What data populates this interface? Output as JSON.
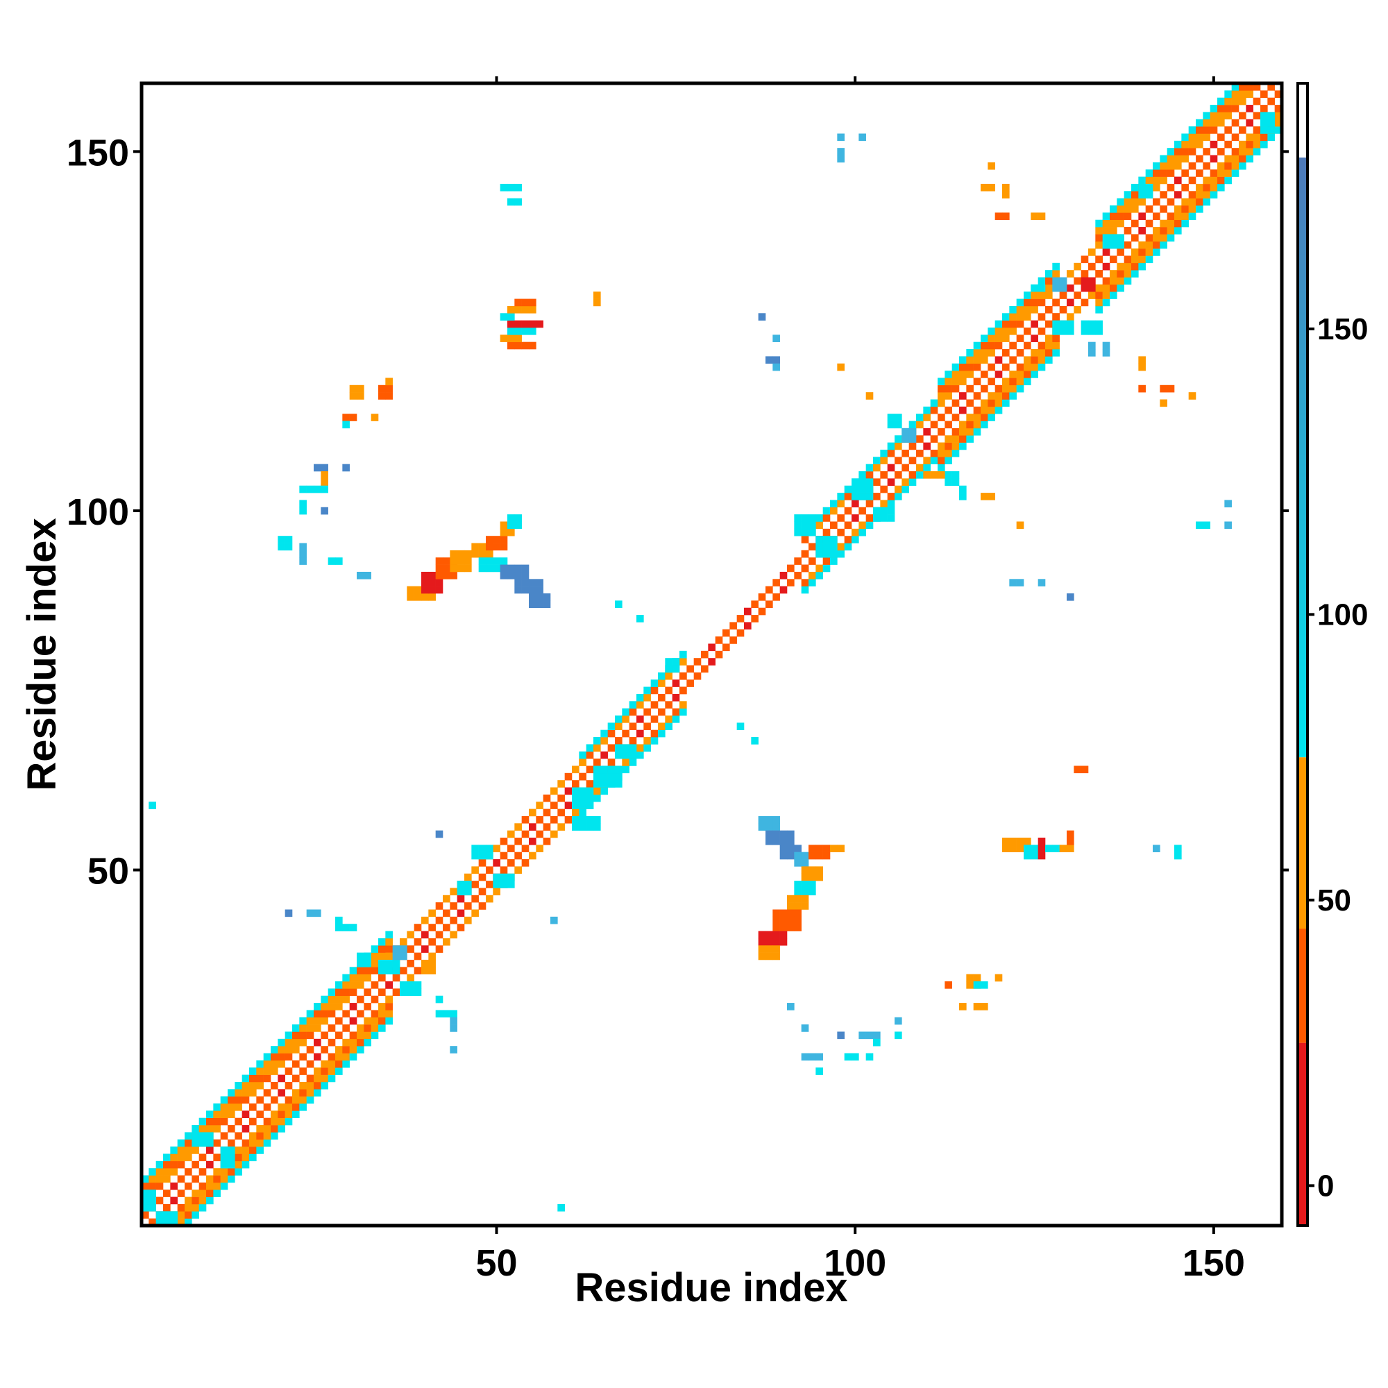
{
  "chart_data": {
    "type": "heatmap",
    "title": "",
    "xlabel": "Residue index",
    "ylabel": "Residue index",
    "xlim": [
      0.5,
      159.5
    ],
    "ylim": [
      0.5,
      159.5
    ],
    "x_ticks": [
      50,
      100,
      150
    ],
    "y_ticks": [
      50,
      100,
      150
    ],
    "colorbar": {
      "ticks": [
        0,
        50,
        100,
        150
      ],
      "range": [
        -7,
        193
      ],
      "bands": [
        {
          "from": -7,
          "to": 25,
          "color": "#e41a1c"
        },
        {
          "from": 25,
          "to": 45,
          "color": "#ff5a00"
        },
        {
          "from": 45,
          "to": 75,
          "color": "#ff9a00"
        },
        {
          "from": 75,
          "to": 180,
          "color": "#00e5ee"
        },
        {
          "from": 180,
          "to": 193,
          "color": "#ffffff"
        }
      ],
      "gradient_top": "#4f79b8",
      "gradient_low": "#00e5ee"
    },
    "colors": {
      "red": "#e41a1c",
      "red_orange": "#ff5a00",
      "orange": "#ff9a00",
      "cyan": "#00e5ee",
      "steel_blue": "#4a86c8",
      "light_blue": "#3fb5e0"
    },
    "diagonal": {
      "segments": [
        {
          "from": 1,
          "to": 35,
          "half_width": 6
        },
        {
          "from": 35,
          "to": 62,
          "half_width": 3
        },
        {
          "from": 62,
          "to": 76,
          "half_width": 4
        },
        {
          "from": 76,
          "to": 93,
          "half_width": 2
        },
        {
          "from": 93,
          "to": 112,
          "half_width": 4
        },
        {
          "from": 112,
          "to": 128,
          "half_width": 6
        },
        {
          "from": 128,
          "to": 134,
          "half_width": 3
        },
        {
          "from": 134,
          "to": 159,
          "half_width": 6
        }
      ]
    },
    "contacts": [
      {
        "x": 38,
        "y": 88,
        "w": 4,
        "h": 2,
        "color": "orange"
      },
      {
        "x": 40,
        "y": 89,
        "w": 3,
        "h": 3,
        "color": "red"
      },
      {
        "x": 42,
        "y": 91,
        "w": 3,
        "h": 3,
        "color": "red_orange"
      },
      {
        "x": 44,
        "y": 92,
        "w": 3,
        "h": 3,
        "color": "orange"
      },
      {
        "x": 47,
        "y": 94,
        "w": 3,
        "h": 2,
        "color": "orange"
      },
      {
        "x": 49,
        "y": 95,
        "w": 3,
        "h": 2,
        "color": "red_orange"
      },
      {
        "x": 51,
        "y": 97,
        "w": 2,
        "h": 2,
        "color": "orange"
      },
      {
        "x": 48,
        "y": 92,
        "w": 4,
        "h": 2,
        "color": "cyan"
      },
      {
        "x": 51,
        "y": 91,
        "w": 4,
        "h": 2,
        "color": "steel_blue"
      },
      {
        "x": 53,
        "y": 89,
        "w": 4,
        "h": 2,
        "color": "steel_blue"
      },
      {
        "x": 55,
        "y": 87,
        "w": 3,
        "h": 2,
        "color": "steel_blue"
      },
      {
        "x": 52,
        "y": 98,
        "w": 2,
        "h": 2,
        "color": "cyan"
      },
      {
        "x": 52,
        "y": 123,
        "w": 4,
        "h": 1,
        "color": "red_orange"
      },
      {
        "x": 51,
        "y": 124,
        "w": 3,
        "h": 1,
        "color": "orange"
      },
      {
        "x": 52,
        "y": 125,
        "w": 4,
        "h": 1,
        "color": "cyan"
      },
      {
        "x": 52,
        "y": 126,
        "w": 5,
        "h": 1,
        "color": "red"
      },
      {
        "x": 51,
        "y": 127,
        "w": 2,
        "h": 1,
        "color": "cyan"
      },
      {
        "x": 52,
        "y": 128,
        "w": 4,
        "h": 1,
        "color": "orange"
      },
      {
        "x": 53,
        "y": 129,
        "w": 3,
        "h": 1,
        "color": "red_orange"
      },
      {
        "x": 64,
        "y": 129,
        "w": 1,
        "h": 2,
        "color": "orange"
      },
      {
        "x": 51,
        "y": 145,
        "w": 3,
        "h": 1,
        "color": "cyan"
      },
      {
        "x": 52,
        "y": 143,
        "w": 2,
        "h": 1,
        "color": "cyan"
      },
      {
        "x": 30,
        "y": 116,
        "w": 2,
        "h": 2,
        "color": "orange"
      },
      {
        "x": 34,
        "y": 116,
        "w": 2,
        "h": 2,
        "color": "red_orange"
      },
      {
        "x": 29,
        "y": 113,
        "w": 2,
        "h": 1,
        "color": "red_orange"
      },
      {
        "x": 33,
        "y": 113,
        "w": 1,
        "h": 1,
        "color": "orange"
      },
      {
        "x": 29,
        "y": 112,
        "w": 1,
        "h": 1,
        "color": "cyan"
      },
      {
        "x": 35,
        "y": 118,
        "w": 1,
        "h": 1,
        "color": "orange"
      },
      {
        "x": 25,
        "y": 106,
        "w": 2,
        "h": 1,
        "color": "steel_blue"
      },
      {
        "x": 26,
        "y": 104,
        "w": 1,
        "h": 2,
        "color": "orange"
      },
      {
        "x": 23,
        "y": 103,
        "w": 4,
        "h": 1,
        "color": "cyan"
      },
      {
        "x": 29,
        "y": 106,
        "w": 1,
        "h": 1,
        "color": "steel_blue"
      },
      {
        "x": 23,
        "y": 100,
        "w": 1,
        "h": 2,
        "color": "cyan"
      },
      {
        "x": 26,
        "y": 100,
        "w": 1,
        "h": 1,
        "color": "steel_blue"
      },
      {
        "x": 20,
        "y": 95,
        "w": 2,
        "h": 2,
        "color": "cyan"
      },
      {
        "x": 23,
        "y": 93,
        "w": 1,
        "h": 3,
        "color": "light_blue"
      },
      {
        "x": 27,
        "y": 93,
        "w": 2,
        "h": 1,
        "color": "cyan"
      },
      {
        "x": 31,
        "y": 91,
        "w": 2,
        "h": 1,
        "color": "light_blue"
      },
      {
        "x": 67,
        "y": 87,
        "w": 1,
        "h": 1,
        "color": "cyan"
      },
      {
        "x": 70,
        "y": 85,
        "w": 1,
        "h": 1,
        "color": "cyan"
      },
      {
        "x": 2,
        "y": 59,
        "w": 1,
        "h": 1,
        "color": "cyan"
      },
      {
        "x": 42,
        "y": 55,
        "w": 1,
        "h": 1,
        "color": "steel_blue"
      },
      {
        "x": 59,
        "y": 3,
        "w": 1,
        "h": 1,
        "color": "cyan"
      },
      {
        "x": 58,
        "y": 43,
        "w": 1,
        "h": 1,
        "color": "light_blue"
      },
      {
        "x": 21,
        "y": 44,
        "w": 1,
        "h": 1,
        "color": "steel_blue"
      },
      {
        "x": 24,
        "y": 44,
        "w": 2,
        "h": 1,
        "color": "light_blue"
      },
      {
        "x": 28,
        "y": 42,
        "w": 1,
        "h": 2,
        "color": "cyan"
      },
      {
        "x": 29,
        "y": 42,
        "w": 2,
        "h": 1,
        "color": "cyan"
      },
      {
        "x": 42,
        "y": 32,
        "w": 1,
        "h": 1,
        "color": "cyan"
      },
      {
        "x": 42,
        "y": 30,
        "w": 3,
        "h": 1,
        "color": "cyan"
      },
      {
        "x": 44,
        "y": 28,
        "w": 1,
        "h": 2,
        "color": "light_blue"
      },
      {
        "x": 44,
        "y": 25,
        "w": 1,
        "h": 1,
        "color": "light_blue"
      },
      {
        "x": 87,
        "y": 56,
        "w": 3,
        "h": 2,
        "color": "light_blue"
      },
      {
        "x": 88,
        "y": 54,
        "w": 4,
        "h": 2,
        "color": "steel_blue"
      },
      {
        "x": 90,
        "y": 52,
        "w": 3,
        "h": 2,
        "color": "steel_blue"
      },
      {
        "x": 92,
        "y": 51,
        "w": 2,
        "h": 2,
        "color": "light_blue"
      },
      {
        "x": 94,
        "y": 52,
        "w": 3,
        "h": 2,
        "color": "red_orange"
      },
      {
        "x": 97,
        "y": 53,
        "w": 2,
        "h": 1,
        "color": "orange"
      },
      {
        "x": 93,
        "y": 49,
        "w": 3,
        "h": 2,
        "color": "orange"
      },
      {
        "x": 92,
        "y": 47,
        "w": 3,
        "h": 2,
        "color": "cyan"
      },
      {
        "x": 91,
        "y": 45,
        "w": 3,
        "h": 2,
        "color": "orange"
      },
      {
        "x": 89,
        "y": 42,
        "w": 4,
        "h": 3,
        "color": "red_orange"
      },
      {
        "x": 87,
        "y": 40,
        "w": 4,
        "h": 2,
        "color": "red"
      },
      {
        "x": 87,
        "y": 38,
        "w": 3,
        "h": 2,
        "color": "orange"
      },
      {
        "x": 121,
        "y": 53,
        "w": 4,
        "h": 2,
        "color": "orange"
      },
      {
        "x": 124,
        "y": 52,
        "w": 2,
        "h": 2,
        "color": "cyan"
      },
      {
        "x": 126,
        "y": 52,
        "w": 1,
        "h": 3,
        "color": "red"
      },
      {
        "x": 127,
        "y": 53,
        "w": 2,
        "h": 1,
        "color": "cyan"
      },
      {
        "x": 129,
        "y": 53,
        "w": 2,
        "h": 1,
        "color": "orange"
      },
      {
        "x": 130,
        "y": 54,
        "w": 1,
        "h": 2,
        "color": "red_orange"
      },
      {
        "x": 131,
        "y": 64,
        "w": 2,
        "h": 1,
        "color": "red_orange"
      },
      {
        "x": 142,
        "y": 53,
        "w": 1,
        "h": 1,
        "color": "light_blue"
      },
      {
        "x": 145,
        "y": 52,
        "w": 1,
        "h": 2,
        "color": "cyan"
      },
      {
        "x": 116,
        "y": 34,
        "w": 2,
        "h": 2,
        "color": "orange"
      },
      {
        "x": 117,
        "y": 34,
        "w": 2,
        "h": 1,
        "color": "cyan"
      },
      {
        "x": 120,
        "y": 35,
        "w": 1,
        "h": 1,
        "color": "orange"
      },
      {
        "x": 115,
        "y": 31,
        "w": 1,
        "h": 1,
        "color": "orange"
      },
      {
        "x": 117,
        "y": 31,
        "w": 2,
        "h": 1,
        "color": "orange"
      },
      {
        "x": 113,
        "y": 34,
        "w": 1,
        "h": 1,
        "color": "red_orange"
      },
      {
        "x": 91,
        "y": 31,
        "w": 1,
        "h": 1,
        "color": "light_blue"
      },
      {
        "x": 93,
        "y": 28,
        "w": 1,
        "h": 1,
        "color": "light_blue"
      },
      {
        "x": 93,
        "y": 24,
        "w": 3,
        "h": 1,
        "color": "light_blue"
      },
      {
        "x": 95,
        "y": 22,
        "w": 1,
        "h": 1,
        "color": "cyan"
      },
      {
        "x": 98,
        "y": 27,
        "w": 1,
        "h": 1,
        "color": "steel_blue"
      },
      {
        "x": 101,
        "y": 27,
        "w": 3,
        "h": 1,
        "color": "light_blue"
      },
      {
        "x": 103,
        "y": 26,
        "w": 1,
        "h": 1,
        "color": "cyan"
      },
      {
        "x": 106,
        "y": 27,
        "w": 1,
        "h": 1,
        "color": "cyan"
      },
      {
        "x": 102,
        "y": 24,
        "w": 1,
        "h": 1,
        "color": "cyan"
      },
      {
        "x": 99,
        "y": 24,
        "w": 2,
        "h": 1,
        "color": "cyan"
      },
      {
        "x": 106,
        "y": 29,
        "w": 1,
        "h": 1,
        "color": "light_blue"
      },
      {
        "x": 84,
        "y": 70,
        "w": 1,
        "h": 1,
        "color": "cyan"
      },
      {
        "x": 86,
        "y": 68,
        "w": 1,
        "h": 1,
        "color": "cyan"
      },
      {
        "x": 122,
        "y": 90,
        "w": 2,
        "h": 1,
        "color": "light_blue"
      },
      {
        "x": 126,
        "y": 90,
        "w": 1,
        "h": 1,
        "color": "light_blue"
      },
      {
        "x": 130,
        "y": 88,
        "w": 1,
        "h": 1,
        "color": "steel_blue"
      },
      {
        "x": 123,
        "y": 98,
        "w": 1,
        "h": 1,
        "color": "orange"
      },
      {
        "x": 118,
        "y": 102,
        "w": 2,
        "h": 1,
        "color": "orange"
      },
      {
        "x": 148,
        "y": 98,
        "w": 2,
        "h": 1,
        "color": "cyan"
      },
      {
        "x": 152,
        "y": 98,
        "w": 1,
        "h": 1,
        "color": "light_blue"
      },
      {
        "x": 152,
        "y": 101,
        "w": 1,
        "h": 1,
        "color": "light_blue"
      },
      {
        "x": 140,
        "y": 120,
        "w": 1,
        "h": 2,
        "color": "orange"
      },
      {
        "x": 140,
        "y": 117,
        "w": 1,
        "h": 1,
        "color": "red_orange"
      },
      {
        "x": 143,
        "y": 117,
        "w": 2,
        "h": 1,
        "color": "red_orange"
      },
      {
        "x": 143,
        "y": 115,
        "w": 1,
        "h": 1,
        "color": "orange"
      },
      {
        "x": 147,
        "y": 116,
        "w": 1,
        "h": 1,
        "color": "orange"
      },
      {
        "x": 118,
        "y": 145,
        "w": 2,
        "h": 1,
        "color": "orange"
      },
      {
        "x": 121,
        "y": 144,
        "w": 1,
        "h": 2,
        "color": "orange"
      },
      {
        "x": 119,
        "y": 148,
        "w": 1,
        "h": 1,
        "color": "orange"
      },
      {
        "x": 120,
        "y": 141,
        "w": 2,
        "h": 1,
        "color": "red_orange"
      },
      {
        "x": 125,
        "y": 141,
        "w": 2,
        "h": 1,
        "color": "orange"
      },
      {
        "x": 98,
        "y": 152,
        "w": 1,
        "h": 1,
        "color": "light_blue"
      },
      {
        "x": 101,
        "y": 152,
        "w": 1,
        "h": 1,
        "color": "light_blue"
      },
      {
        "x": 98,
        "y": 149,
        "w": 1,
        "h": 2,
        "color": "light_blue"
      },
      {
        "x": 87,
        "y": 127,
        "w": 1,
        "h": 1,
        "color": "steel_blue"
      },
      {
        "x": 89,
        "y": 124,
        "w": 1,
        "h": 1,
        "color": "light_blue"
      },
      {
        "x": 88,
        "y": 121,
        "w": 2,
        "h": 1,
        "color": "steel_blue"
      },
      {
        "x": 89,
        "y": 120,
        "w": 1,
        "h": 1,
        "color": "light_blue"
      },
      {
        "x": 98,
        "y": 120,
        "w": 1,
        "h": 1,
        "color": "orange"
      },
      {
        "x": 102,
        "y": 116,
        "w": 1,
        "h": 1,
        "color": "orange"
      },
      {
        "x": 105,
        "y": 112,
        "w": 2,
        "h": 2,
        "color": "cyan"
      },
      {
        "x": 107,
        "y": 110,
        "w": 2,
        "h": 2,
        "color": "light_blue"
      },
      {
        "x": 113,
        "y": 104,
        "w": 2,
        "h": 2,
        "color": "cyan"
      },
      {
        "x": 115,
        "y": 102,
        "w": 1,
        "h": 2,
        "color": "cyan"
      },
      {
        "x": 110,
        "y": 105,
        "w": 3,
        "h": 1,
        "color": "orange"
      },
      {
        "x": 128,
        "y": 131,
        "w": 2,
        "h": 2,
        "color": "light_blue"
      },
      {
        "x": 125,
        "y": 131,
        "w": 2,
        "h": 1,
        "color": "cyan"
      },
      {
        "x": 132,
        "y": 125,
        "w": 3,
        "h": 2,
        "color": "cyan"
      },
      {
        "x": 133,
        "y": 122,
        "w": 1,
        "h": 2,
        "color": "light_blue"
      },
      {
        "x": 135,
        "y": 122,
        "w": 1,
        "h": 2,
        "color": "light_blue"
      },
      {
        "x": 132,
        "y": 131,
        "w": 2,
        "h": 2,
        "color": "red"
      },
      {
        "x": 34,
        "y": 36,
        "w": 3,
        "h": 2,
        "color": "cyan"
      },
      {
        "x": 37,
        "y": 33,
        "w": 3,
        "h": 2,
        "color": "cyan"
      },
      {
        "x": 31,
        "y": 37,
        "w": 2,
        "h": 2,
        "color": "cyan"
      },
      {
        "x": 40,
        "y": 36,
        "w": 2,
        "h": 2,
        "color": "orange"
      },
      {
        "x": 36,
        "y": 38,
        "w": 2,
        "h": 2,
        "color": "light_blue"
      },
      {
        "x": 8,
        "y": 12,
        "w": 3,
        "h": 2,
        "color": "cyan"
      },
      {
        "x": 12,
        "y": 9,
        "w": 2,
        "h": 3,
        "color": "cyan"
      },
      {
        "x": 61,
        "y": 59,
        "w": 3,
        "h": 3,
        "color": "cyan"
      },
      {
        "x": 61,
        "y": 56,
        "w": 4,
        "h": 2,
        "color": "cyan"
      },
      {
        "x": 64,
        "y": 62,
        "w": 4,
        "h": 3,
        "color": "cyan"
      },
      {
        "x": 67,
        "y": 66,
        "w": 3,
        "h": 2,
        "color": "cyan"
      },
      {
        "x": 47,
        "y": 52,
        "w": 3,
        "h": 2,
        "color": "cyan"
      },
      {
        "x": 50,
        "y": 48,
        "w": 3,
        "h": 2,
        "color": "cyan"
      },
      {
        "x": 45,
        "y": 47,
        "w": 2,
        "h": 2,
        "color": "cyan"
      },
      {
        "x": 74,
        "y": 78,
        "w": 2,
        "h": 2,
        "color": "cyan"
      },
      {
        "x": 92,
        "y": 97,
        "w": 3,
        "h": 3,
        "color": "cyan"
      },
      {
        "x": 95,
        "y": 94,
        "w": 3,
        "h": 3,
        "color": "cyan"
      },
      {
        "x": 100,
        "y": 102,
        "w": 3,
        "h": 3,
        "color": "cyan"
      },
      {
        "x": 103,
        "y": 99,
        "w": 3,
        "h": 2,
        "color": "cyan"
      },
      {
        "x": 128,
        "y": 125,
        "w": 3,
        "h": 2,
        "color": "cyan"
      },
      {
        "x": 140,
        "y": 144,
        "w": 2,
        "h": 2,
        "color": "cyan"
      },
      {
        "x": 135,
        "y": 137,
        "w": 3,
        "h": 2,
        "color": "cyan"
      },
      {
        "x": 157,
        "y": 153,
        "w": 2,
        "h": 3,
        "color": "cyan"
      },
      {
        "x": 1,
        "y": 3,
        "w": 2,
        "h": 3,
        "color": "cyan"
      },
      {
        "x": 3,
        "y": 1,
        "w": 3,
        "h": 2,
        "color": "cyan"
      }
    ]
  }
}
